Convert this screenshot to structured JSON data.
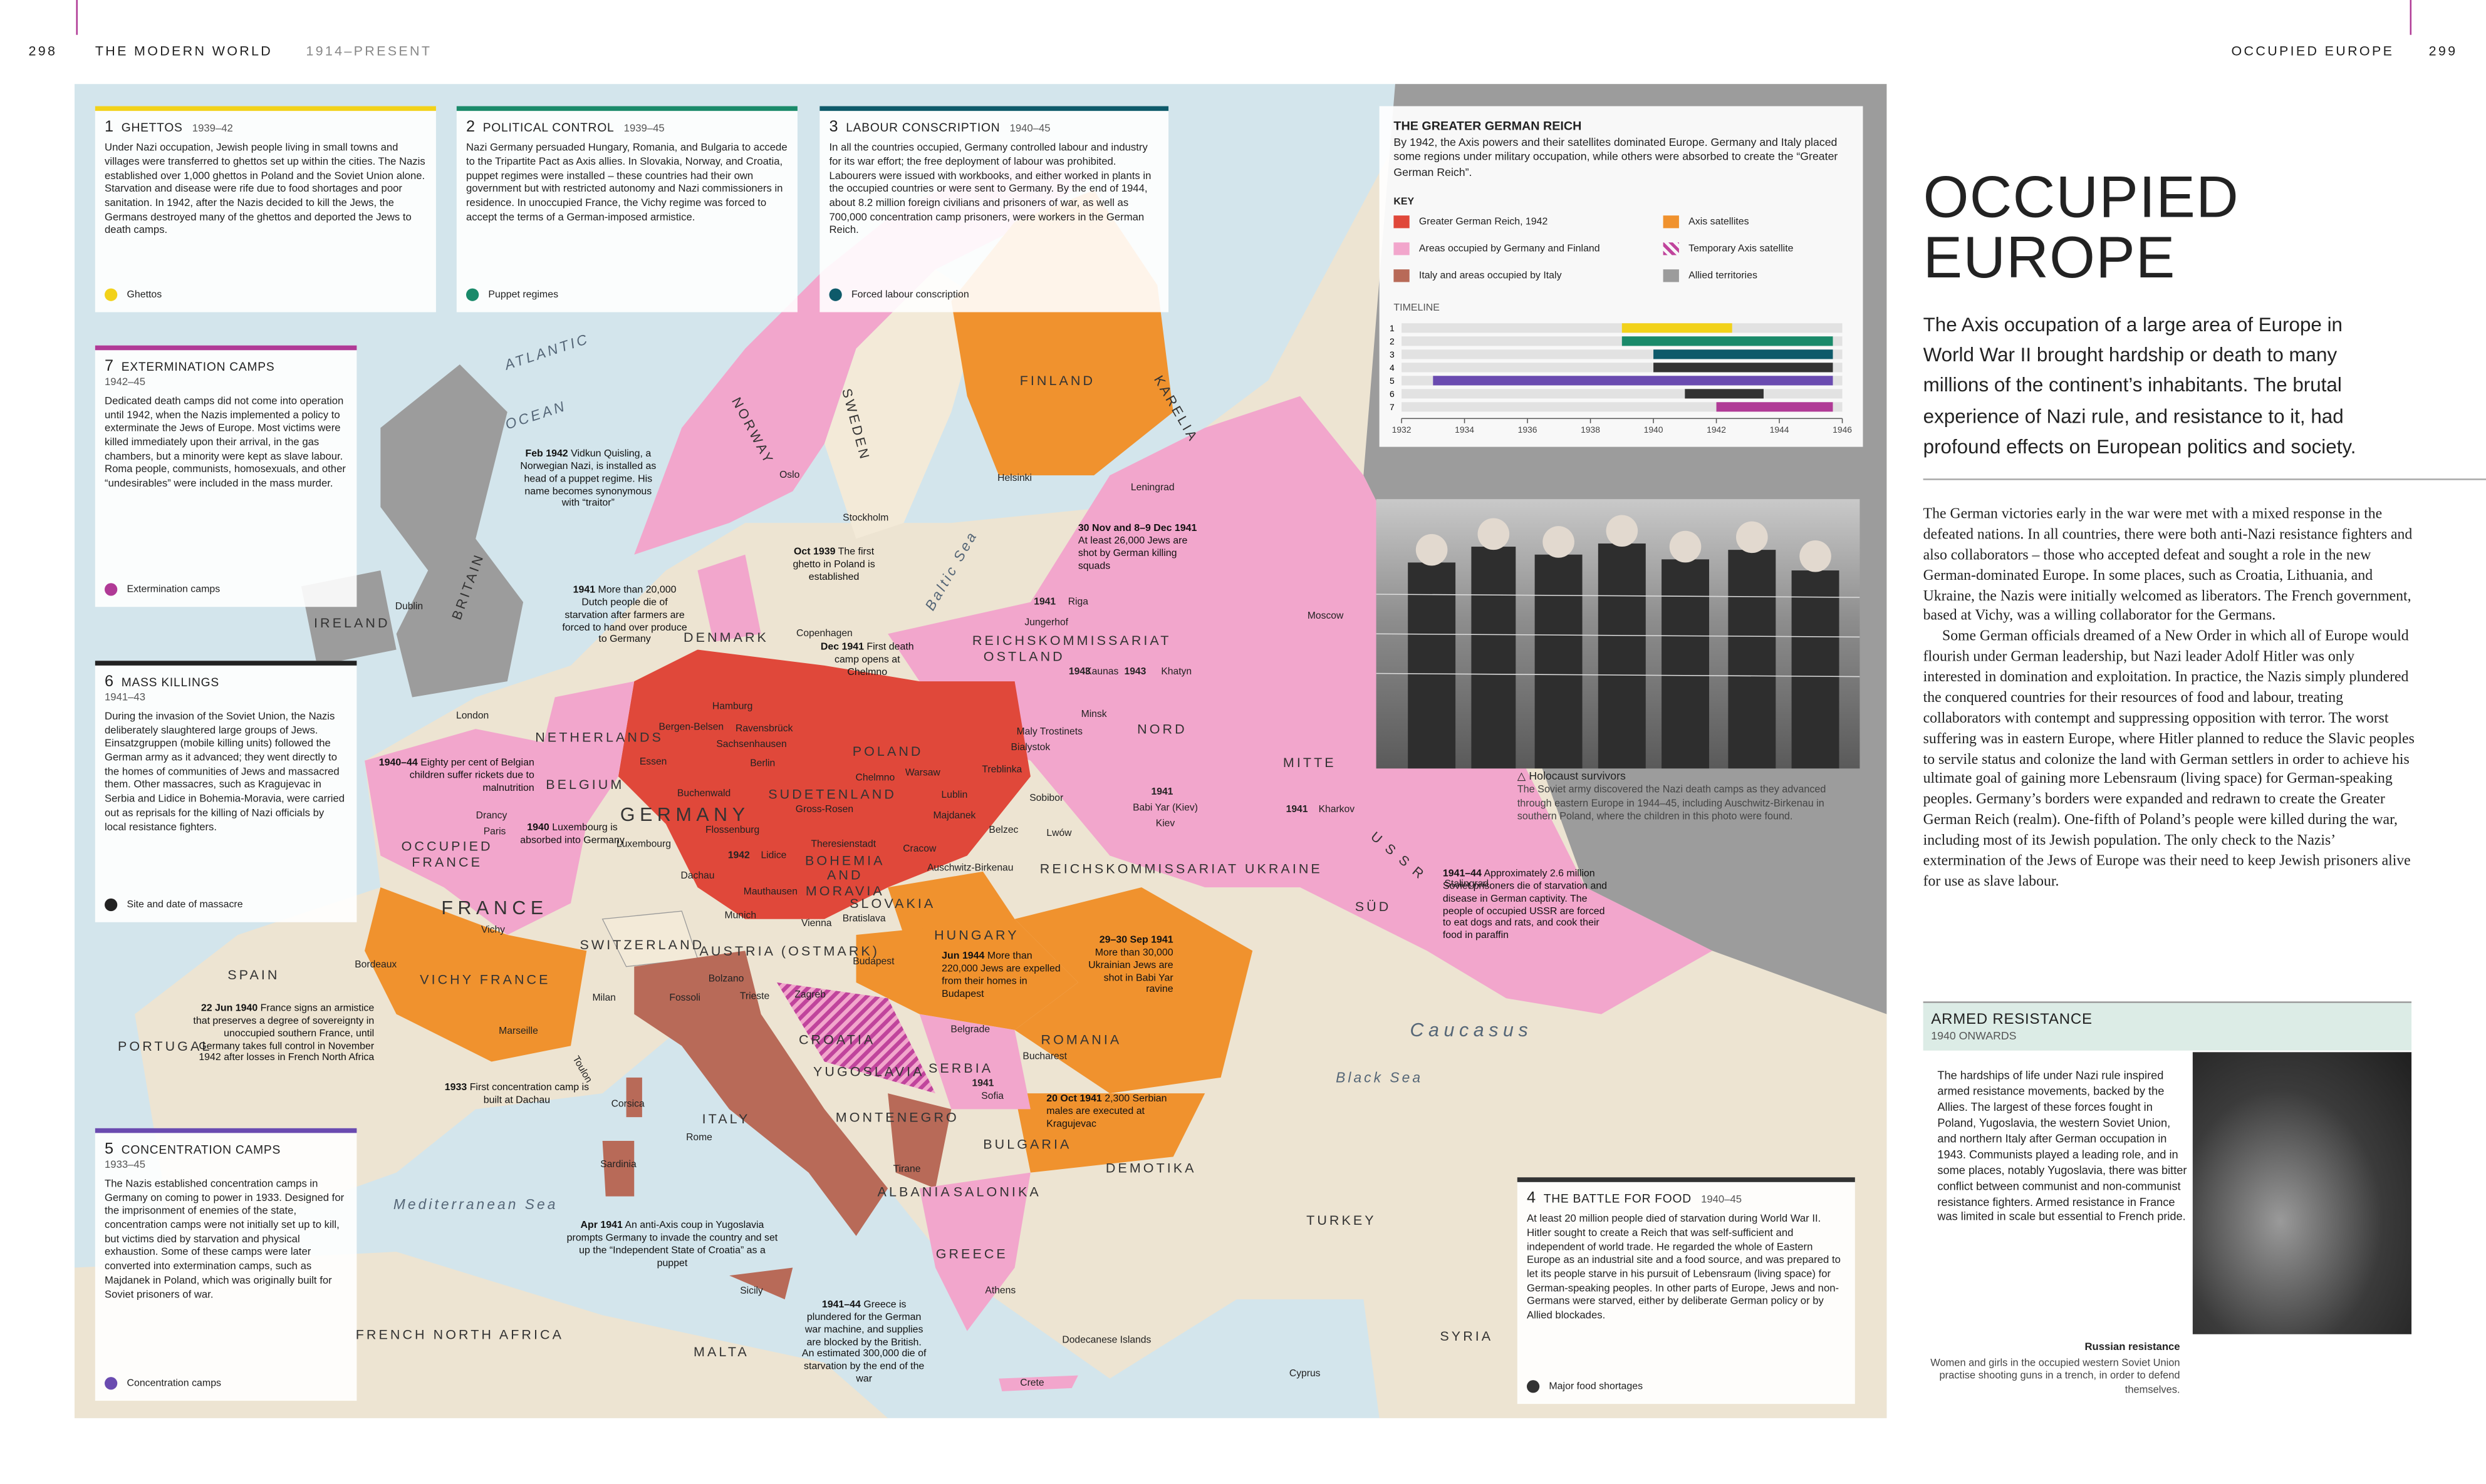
{
  "header": {
    "left_page": "298",
    "left_running": "THE MODERN WORLD",
    "left_period": "1914–PRESENT",
    "right_running": "OCCUPIED EUROPE",
    "right_page": "299"
  },
  "panels": [
    {
      "number": "1",
      "title": "GHETTOS",
      "dates": "1939–42",
      "text": "Under Nazi occupation, Jewish people living in small towns and villages were transferred to ghettos set up within the cities. The Nazis established over 1,000 ghettos in Poland and the Soviet Union alone. Starvation and disease were rife due to food shortages and poor sanitation. In 1942, after the Nazis decided to kill the Jews, the Germans destroyed many of the ghettos and deported the Jews to death camps.",
      "key": "Ghettos",
      "color": "#f2d21a"
    },
    {
      "number": "2",
      "title": "POLITICAL CONTROL",
      "dates": "1939–45",
      "text": "Nazi Germany persuaded Hungary, Romania, and Bulgaria to accede to the Tripartite Pact as Axis allies. In Slovakia, Norway, and Croatia, puppet regimes were installed – these countries had their own government but with restricted autonomy and Nazi commissioners in residence. In unoccupied France, the Vichy regime was forced to accept the terms of a German-imposed armistice.",
      "key": "Puppet regimes",
      "color": "#1a8a6a"
    },
    {
      "number": "3",
      "title": "LABOUR CONSCRIPTION",
      "dates": "1940–45",
      "text": "In all the countries occupied, Germany controlled labour and industry for its war effort; the free deployment of labour was prohibited. Labourers were issued with workbooks, and either worked in plants in the occupied countries or were sent to Germany. By the end of 1944, about 8.2 million foreign civilians and prisoners of war, as well as 700,000 concentration camp prisoners, were workers in the German Reich.",
      "key": "Forced labour conscription",
      "color": "#0e5a6a"
    },
    {
      "number": "7",
      "title": "EXTERMINATION CAMPS",
      "dates": "1942–45",
      "text": "Dedicated death camps did not come into operation until 1942, when the Nazis implemented a policy to exterminate the Jews of Europe. Most victims were killed immediately upon their arrival, in the gas chambers, but a minority were kept as slave labour. Roma people, communists, homosexuals, and other “undesirables” were included in the mass murder.",
      "key": "Extermination camps",
      "color": "#b03a96"
    },
    {
      "number": "6",
      "title": "MASS KILLINGS",
      "dates": "1941–43",
      "text": "During the invasion of the Soviet Union, the Nazis deliberately slaughtered large groups of Jews. Einsatzgruppen (mobile killing units) followed the German army as it advanced; they went directly to the homes of communities of Jews and massacred them. Other massacres, such as Kragujevac in Serbia and Lidice in Bohemia-Moravia, were carried out as reprisals for the killing of Nazi officials by local resistance fighters.",
      "key": "Site and date of massacre",
      "color": "#222222"
    },
    {
      "number": "5",
      "title": "CONCENTRATION CAMPS",
      "dates": "1933–45",
      "text": "The Nazis established concentration camps in Germany on coming to power in 1933. Designed for the imprisonment of enemies of the state, concentration camps were not initially set up to kill, but victims died by starvation and physical exhaustion. Some of these camps were later converted into extermination camps, such as Majdanek in Poland, which was originally built for Soviet prisoners of war.",
      "key": "Concentration camps",
      "color": "#6a4bb0"
    },
    {
      "number": "4",
      "title": "THE BATTLE FOR FOOD",
      "dates": "1940–45",
      "text": "At least 20 million people died of starvation during World War II. Hitler sought to create a Reich that was self-sufficient and independent of world trade. He regarded the whole of Eastern Europe as an industrial site and a food source, and was prepared to let its people starve in his pursuit of Lebensraum (living space) for German-speaking peoples. In other parts of Europe, Jews and non-Germans were starved, either by deliberate German policy or by Allied blockades.",
      "key": "Major food shortages",
      "color": "#333333"
    }
  ],
  "reich": {
    "title": "THE GREATER GERMAN REICH",
    "text": "By 1942, the Axis powers and their satellites dominated Europe. Germany and Italy placed some regions under military occupation, while others were absorbed to create the “Greater German Reich”.",
    "key_label": "KEY",
    "key": [
      {
        "label": "Greater German Reich, 1942",
        "color": "#e0483a"
      },
      {
        "label": "Areas occupied by Germany and Finland",
        "color": "#f2a6cc"
      },
      {
        "label": "Italy and areas occupied by Italy",
        "color": "#b86a58"
      },
      {
        "label": "Axis satellites",
        "color": "#f0922e"
      },
      {
        "label": "Temporary Axis satellite",
        "color": "#c0449c"
      },
      {
        "label": "Allied territories",
        "color": "#9c9c9c"
      }
    ],
    "timeline": {
      "label": "TIMELINE",
      "xlim": [
        1932,
        1946
      ],
      "xticks": [
        1932,
        1934,
        1936,
        1938,
        1940,
        1942,
        1944,
        1946
      ],
      "rows": [
        {
          "label": "1",
          "start": 1939,
          "end": 1942.5,
          "color": "#f2d21a"
        },
        {
          "label": "2",
          "start": 1939,
          "end": 1945.7,
          "color": "#1a8a6a"
        },
        {
          "label": "3",
          "start": 1940,
          "end": 1945.7,
          "color": "#0e5a6a"
        },
        {
          "label": "4",
          "start": 1940,
          "end": 1945.7,
          "color": "#333333"
        },
        {
          "label": "5",
          "start": 1933,
          "end": 1945.7,
          "color": "#6a4bb0"
        },
        {
          "label": "6",
          "start": 1941,
          "end": 1943.5,
          "color": "#333333"
        },
        {
          "label": "7",
          "start": 1942,
          "end": 1945.7,
          "color": "#b03a96"
        }
      ]
    }
  },
  "main": {
    "title": "OCCUPIED EUROPE",
    "intro": "The Axis occupation of a large area of Europe in World War II brought hardship or death to many millions of the continent’s inhabitants. The brutal experience of Nazi rule, and resistance to it, had profound effects on European politics and society.",
    "body": [
      "The German victories early in the war were met with a mixed response in the defeated nations. In all countries, there were both anti-Nazi resistance fighters and also collaborators – those who accepted defeat and sought a role in the new German-dominated Europe. In some places, such as Croatia, Lithuania, and Ukraine, the Nazis were initially welcomed as liberators. The French government, based at Vichy, was a willing collaborator for the Germans.",
      "Some German officials dreamed of a New Order in which all of Europe would flourish under German leadership, but Nazi leader Adolf Hitler was only interested in domination and exploitation. In practice, the Nazis simply plundered the conquered countries for their resources of food and labour, treating collaborators with contempt and suppressing opposition with terror. The worst suffering was in eastern Europe, where Hitler planned to reduce the Slavic peoples to servile status and colonize the land with German settlers in order to achieve his ultimate goal of gaining more Lebensraum (living space) for German-speaking peoples. Germany’s borders were expanded and redrawn to create the Greater German Reich (realm). One-fifth of Poland’s people were killed during the war, including most of its Jewish population. The only check to the Nazis’ extermination of the Jews of Europe was their need to keep Jewish prisoners alive for use as slave labour."
    ]
  },
  "photo": {
    "title": "Holocaust survivors",
    "caption": "The Soviet army discovered the Nazi death camps as they advanced through eastern Europe in 1944–45, including Auschwitz-Birkenau in southern Poland, where the children in this photo were found."
  },
  "armed": {
    "title": "ARMED RESISTANCE",
    "dates": "1940 ONWARDS",
    "text": "The hardships of life under Nazi rule inspired armed resistance movements, backed by the Allies. The largest of these forces fought in Poland, Yugoslavia, the western Soviet Union, and northern Italy after German occupation in 1943. Communists played a leading role, and in some places, notably Yugoslavia, there was bitter conflict between communist and non-communist resistance fighters. Armed resistance in France was limited in scale but essential to French pride.",
    "photo_title": "Russian resistance",
    "photo_caption": "Women and girls in the occupied western Soviet Union practise shooting guns in a trench, in order to defend themselves."
  },
  "annotations": [
    {
      "date": "Feb 1942",
      "text": "Vidkun Quisling, a Norwegian Nazi, is installed as head of a puppet regime. His name becomes synonymous with “traitor”"
    },
    {
      "date": "Oct 1939",
      "text": "The first ghetto in Poland is established"
    },
    {
      "date": "Dec 1941",
      "text": "First death camp opens at Chelmno"
    },
    {
      "date": "30 Nov and 8–9 Dec 1941",
      "text": "At least 26,000 Jews are shot by German killing squads"
    },
    {
      "date": "1941",
      "text": "More than 20,000 Dutch people die of starvation after farmers are forced to hand over produce to Germany"
    },
    {
      "date": "1940–44",
      "text": "Eighty per cent of Belgian children suffer rickets due to malnutrition"
    },
    {
      "date": "1940",
      "text": "Luxembourg is absorbed into Germany"
    },
    {
      "date": "22 Jun 1940",
      "text": "France signs an armistice that preserves a degree of sovereignty in unoccupied southern France, until Germany takes full control in November 1942 after losses in French North Africa"
    },
    {
      "date": "1933",
      "text": "First concentration camp is built at Dachau"
    },
    {
      "date": "Apr 1941",
      "text": "An anti-Axis coup in Yugoslavia prompts Germany to invade the country and set up the “Independent State of Croatia” as a puppet"
    },
    {
      "date": "1941–44",
      "text": "Greece is plundered for the German war machine, and supplies are blocked by the British. An estimated 300,000 die of starvation by the end of the war"
    },
    {
      "date": "Jun 1944",
      "text": "More than 220,000 Jews are expelled from their homes in Budapest"
    },
    {
      "date": "29–30 Sep 1941",
      "text": "More than 30,000 Ukrainian Jews are shot in Babi Yar ravine"
    },
    {
      "date": "20 Oct 1941",
      "text": "2,300 Serbian males are executed at Kragujevac"
    },
    {
      "date": "1941–44",
      "text": "Approximately 2.6 million Soviet prisoners die of starvation and disease in German captivity. The people of occupied USSR are forced to eat dogs and rats, and cook their food in paraffin"
    }
  ],
  "map_labels": [
    "ATLANTIC",
    "OCEAN",
    "IRELAND",
    "Dublin",
    "BRITAIN",
    "London",
    "NORWAY",
    "Oslo",
    "SWEDEN",
    "Stockholm",
    "FINLAND",
    "KARELIA",
    "Helsinki",
    "Leningrad",
    "Moscow",
    "DENMARK",
    "Copenhagen",
    "Baltic Sea",
    "Riga",
    "Jungerhof",
    "REICHSKOMMISSARIAT",
    "OSTLAND",
    "Kaunas",
    "Khatyn",
    "Minsk",
    "NORD",
    "Maly Trostinets",
    "Bialystok",
    "NETHERLANDS",
    "BELGIUM",
    "Essen",
    "Bergen-Belsen",
    "Hamburg",
    "Ravensbrück",
    "Sachsenhausen",
    "Berlin",
    "POLAND",
    "Chelmno",
    "Warsaw",
    "Treblinka",
    "Buchenwald",
    "SUDETENLAND",
    "Gross-Rosen",
    "GERMANY",
    "Flossenburg",
    "Theresienstadt",
    "Lublin",
    "Sobibor",
    "Majdanek",
    "Belzec",
    "Lwów",
    "MITTE",
    "Kharkov",
    "Kiev",
    "1942",
    "Lidice",
    "BOHEMIA AND MORAVIA",
    "Cracow",
    "Auschwitz-Birkenau",
    "OCCUPIED FRANCE",
    "Drancy",
    "Paris",
    "Luxembourg",
    "Dachau",
    "Mauthausen",
    "SLOVAKIA",
    "Bratislava",
    "Munich",
    "Vienna",
    "FRANCE",
    "Vichy",
    "SWITZERLAND",
    "HUNGARY",
    "AUSTRIA (OSTMARK)",
    "Budapest",
    "Bordeaux",
    "VICHY FRANCE",
    "SPAIN",
    "PORTUGAL",
    "Milan",
    "Fossoli",
    "Bolzano",
    "Trieste",
    "Zagreb",
    "CROATIA",
    "YUGOSLAVIA",
    "Belgrade",
    "ROMANIA",
    "Bucharest",
    "SERBIA",
    "Marseille",
    "Toulon",
    "Corsica",
    "ITALY",
    "MONTENEGRO",
    "Sofia",
    "BULGARIA",
    "Rome",
    "Sardinia",
    "Tirane",
    "ALBANIA",
    "SALONIKA",
    "DEMOTIKA",
    "Mediterranean Sea",
    "GREECE",
    "Athens",
    "Sicily",
    "FRENCH NORTH AFRICA",
    "MALTA",
    "Dodecanese Islands",
    "Crete",
    "Cyprus",
    "TURKEY",
    "SYRIA",
    "Black Sea",
    "Caucasus",
    "SÜD",
    "U S S R",
    "Stalingrad",
    "REICHSKOMMISSARIAT UKRAINE",
    "1941",
    "1943",
    "1943",
    "1941",
    "1941",
    "Babi Yar (Kiev)",
    "1941"
  ]
}
